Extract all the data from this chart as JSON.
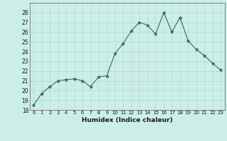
{
  "x": [
    0,
    1,
    2,
    3,
    4,
    5,
    6,
    7,
    8,
    9,
    10,
    11,
    12,
    13,
    14,
    15,
    16,
    17,
    18,
    19,
    20,
    21,
    22,
    23
  ],
  "y": [
    18.5,
    19.7,
    20.4,
    21.0,
    21.1,
    21.2,
    21.0,
    20.4,
    21.4,
    21.5,
    23.8,
    24.8,
    26.1,
    27.0,
    26.7,
    25.8,
    28.0,
    26.0,
    27.5,
    25.1,
    24.2,
    23.6,
    22.8,
    22.1
  ],
  "line_color": "#2d6b5e",
  "marker": "*",
  "marker_size": 3.5,
  "bg_color": "#cceee8",
  "grid_color": "#b0d8d2",
  "xlabel": "Humidex (Indice chaleur)",
  "ylim": [
    18,
    29
  ],
  "xlim": [
    -0.5,
    23.5
  ],
  "yticks": [
    18,
    19,
    20,
    21,
    22,
    23,
    24,
    25,
    26,
    27,
    28
  ],
  "xticks": [
    0,
    1,
    2,
    3,
    4,
    5,
    6,
    7,
    8,
    9,
    10,
    11,
    12,
    13,
    14,
    15,
    16,
    17,
    18,
    19,
    20,
    21,
    22,
    23
  ]
}
